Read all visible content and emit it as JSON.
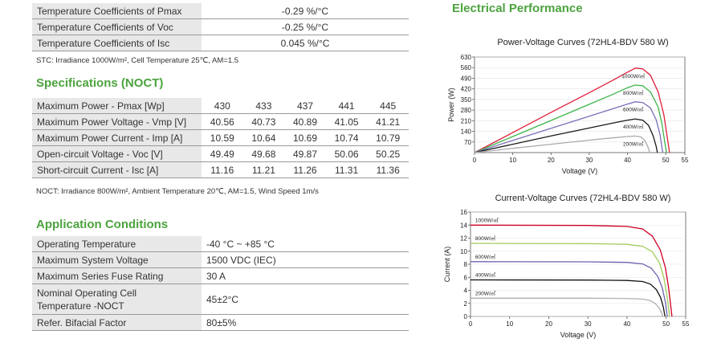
{
  "stc": {
    "rows": [
      {
        "label": "Temperature Coefficients of Pmax",
        "value": "-0.29 %/°C"
      },
      {
        "label": "Temperature Coefficients of Voc",
        "value": "-0.25 %/°C"
      },
      {
        "label": "Temperature Coefficients of Isc",
        "value": "0.045 %/°C"
      }
    ],
    "note": "STC: Irradiance 1000W/m², Cell Temperature 25℃, AM=1.5"
  },
  "noct": {
    "heading": "Specifications (NOCT)",
    "rows": [
      {
        "label": "Maximum Power - Pmax [Wp]",
        "values": [
          "430",
          "433",
          "437",
          "441",
          "445"
        ]
      },
      {
        "label": "Maximum Power Voltage - Vmp [V]",
        "values": [
          "40.56",
          "40.73",
          "40.89",
          "41.05",
          "41.21"
        ]
      },
      {
        "label": "Maximum Power Current - Imp [A]",
        "values": [
          "10.59",
          "10.64",
          "10.69",
          "10.74",
          "10.79"
        ]
      },
      {
        "label": "Open-circuit Voltage - Voc [V]",
        "values": [
          "49.49",
          "49.68",
          "49.87",
          "50.06",
          "50.25"
        ]
      },
      {
        "label": "Short-circuit Current - Isc [A]",
        "values": [
          "11.16",
          "11.21",
          "11.26",
          "11.31",
          "11.36"
        ]
      }
    ],
    "note": "NOCT: Irradiance 800W/m², Ambient Temperature 20℃, AM=1.5, Wind Speed 1m/s"
  },
  "application": {
    "heading": "Application Conditions",
    "rows": [
      {
        "label": "Operating Temperature",
        "value": "-40 °C ~ +85 °C"
      },
      {
        "label": "Maximum System Voltage",
        "value": "1500 VDC (IEC)"
      },
      {
        "label": "Maximum Series Fuse Rating",
        "value": "30 A"
      },
      {
        "label": "Nominal Operating Cell Temperature -NOCT",
        "label_line1": "Nominal Operating Cell",
        "label_line2": "Temperature -NOCT",
        "value": "45±2°C"
      },
      {
        "label": "Refer. Bifacial Factor",
        "value": "80±5%"
      }
    ]
  },
  "electrical": {
    "heading": "Electrical Performance"
  },
  "chart_data": [
    {
      "type": "line",
      "title": "Power-Voltage Curves (72HL4-BDV 580 W)",
      "xlabel": "Voltage (V)",
      "ylabel": "Power (W)",
      "xlim": [
        0,
        55
      ],
      "ylim": [
        0,
        630
      ],
      "xticks": [
        0,
        10,
        20,
        30,
        40,
        50,
        55
      ],
      "yticks": [
        70,
        140,
        210,
        280,
        350,
        420,
        490,
        560,
        630
      ],
      "series": [
        {
          "name": "1000W/㎡",
          "color": "#e0203a",
          "points": [
            [
              0,
              0
            ],
            [
              10,
              132
            ],
            [
              20,
              265
            ],
            [
              30,
              395
            ],
            [
              36,
              475
            ],
            [
              40,
              530
            ],
            [
              42,
              557
            ],
            [
              44,
              552
            ],
            [
              46,
              510
            ],
            [
              48,
              400
            ],
            [
              49.5,
              250
            ],
            [
              50.5,
              80
            ],
            [
              51,
              0
            ]
          ]
        },
        {
          "name": "800W/㎡",
          "color": "#3bb54a",
          "points": [
            [
              0,
              0
            ],
            [
              10,
              106
            ],
            [
              20,
              212
            ],
            [
              30,
              318
            ],
            [
              36,
              382
            ],
            [
              40,
              428
            ],
            [
              42,
              445
            ],
            [
              44,
              440
            ],
            [
              46,
              400
            ],
            [
              48,
              300
            ],
            [
              49,
              190
            ],
            [
              49.8,
              60
            ],
            [
              50.2,
              0
            ]
          ]
        },
        {
          "name": "600W/㎡",
          "color": "#7a6fb8",
          "points": [
            [
              0,
              0
            ],
            [
              10,
              80
            ],
            [
              20,
              160
            ],
            [
              30,
              240
            ],
            [
              36,
              288
            ],
            [
              40,
              320
            ],
            [
              42,
              335
            ],
            [
              44,
              330
            ],
            [
              46,
              295
            ],
            [
              47.5,
              215
            ],
            [
              48.5,
              120
            ],
            [
              49.2,
              0
            ]
          ]
        },
        {
          "name": "400W/㎡",
          "color": "#1a1a1a",
          "points": [
            [
              0,
              0
            ],
            [
              10,
              55
            ],
            [
              20,
              110
            ],
            [
              30,
              162
            ],
            [
              36,
              194
            ],
            [
              40,
              214
            ],
            [
              42,
              222
            ],
            [
              44,
              214
            ],
            [
              45.5,
              180
            ],
            [
              46.7,
              110
            ],
            [
              47.5,
              40
            ],
            [
              47.8,
              0
            ]
          ]
        },
        {
          "name": "200W/㎡",
          "color": "#aaaaaa",
          "points": [
            [
              0,
              0
            ],
            [
              10,
              28
            ],
            [
              20,
              55
            ],
            [
              30,
              82
            ],
            [
              36,
              97
            ],
            [
              40,
              106
            ],
            [
              42,
              109
            ],
            [
              43.5,
              103
            ],
            [
              44.5,
              80
            ],
            [
              45.3,
              40
            ],
            [
              45.8,
              0
            ]
          ]
        }
      ]
    },
    {
      "type": "line",
      "title": "Current-Voltage Curves (72HL4-BDV 580 W)",
      "xlabel": "Voltage (V)",
      "ylabel": "Current (A)",
      "xlim": [
        0,
        55
      ],
      "ylim": [
        0,
        16
      ],
      "xticks": [
        0,
        10,
        20,
        30,
        40,
        50,
        55
      ],
      "yticks": [
        0,
        2,
        4,
        6,
        8,
        10,
        12,
        14,
        16
      ],
      "series": [
        {
          "name": "1000W/㎡",
          "color": "#cc0022",
          "points": [
            [
              0,
              14
            ],
            [
              30,
              13.95
            ],
            [
              40,
              13.8
            ],
            [
              44,
              13.4
            ],
            [
              46.5,
              12.3
            ],
            [
              48.5,
              10.2
            ],
            [
              49.8,
              7.5
            ],
            [
              50.6,
              4.5
            ],
            [
              51.2,
              1.5
            ],
            [
              51.5,
              0
            ]
          ]
        },
        {
          "name": "800W/㎡",
          "color": "#9fcc5a",
          "points": [
            [
              0,
              11.2
            ],
            [
              30,
              11.15
            ],
            [
              40,
              11.05
            ],
            [
              44,
              10.75
            ],
            [
              46.5,
              9.9
            ],
            [
              48.3,
              8.2
            ],
            [
              49.4,
              6
            ],
            [
              50.2,
              3.3
            ],
            [
              50.7,
              1
            ],
            [
              50.9,
              0
            ]
          ]
        },
        {
          "name": "600W/㎡",
          "color": "#6a62b0",
          "points": [
            [
              0,
              8.4
            ],
            [
              30,
              8.37
            ],
            [
              40,
              8.28
            ],
            [
              44,
              8.05
            ],
            [
              46.2,
              7.4
            ],
            [
              47.9,
              6.1
            ],
            [
              49,
              4.4
            ],
            [
              49.8,
              2.2
            ],
            [
              50.3,
              0
            ]
          ]
        },
        {
          "name": "400W/㎡",
          "color": "#111111",
          "points": [
            [
              0,
              5.6
            ],
            [
              30,
              5.58
            ],
            [
              40,
              5.52
            ],
            [
              44,
              5.35
            ],
            [
              46,
              4.95
            ],
            [
              47.5,
              4.1
            ],
            [
              48.6,
              2.9
            ],
            [
              49.3,
              1.4
            ],
            [
              49.7,
              0
            ]
          ]
        },
        {
          "name": "200W/㎡",
          "color": "#b0b0b0",
          "points": [
            [
              0,
              2.8
            ],
            [
              30,
              2.79
            ],
            [
              40,
              2.76
            ],
            [
              44,
              2.66
            ],
            [
              45.8,
              2.45
            ],
            [
              47.2,
              2
            ],
            [
              48.2,
              1.3
            ],
            [
              48.9,
              0.5
            ],
            [
              49.1,
              0
            ]
          ]
        }
      ]
    }
  ]
}
